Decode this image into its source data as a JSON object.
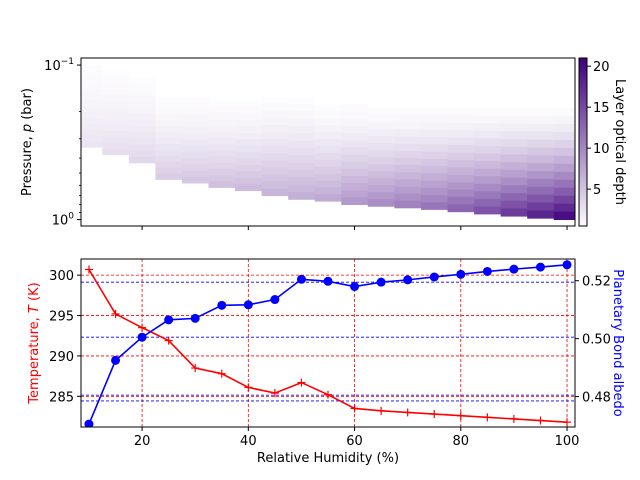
{
  "chart_data": [
    {
      "type": "heatmap",
      "title": "",
      "xlabel": "",
      "ylabel": "Pressure, p (bar)",
      "ylabel_main": "Pressure, ",
      "ylabel_var": "p",
      "ylabel_unit": " (bar)",
      "yscale": "log",
      "ylim": [
        1.1,
        0.09
      ],
      "yticks": [
        {
          "value": 0.1,
          "base": "10",
          "exp": "−1"
        },
        {
          "value": 1.0,
          "base": "10",
          "exp": "0"
        }
      ],
      "colorbar": {
        "label": "Layer optical depth",
        "range": [
          0.5,
          21
        ],
        "ticks": [
          5,
          10,
          15,
          20
        ],
        "colormap": "Purples",
        "color_low": "#fcfbfd",
        "color_high": "#3f007d"
      },
      "columns": [
        {
          "humidity": 10,
          "p_top": 0.1,
          "p_bottom": 0.34,
          "max_depth": 2.5
        },
        {
          "humidity": 15,
          "p_top": 0.11,
          "p_bottom": 0.38,
          "max_depth": 3.0
        },
        {
          "humidity": 20,
          "p_top": 0.12,
          "p_bottom": 0.43,
          "max_depth": 3.5
        },
        {
          "humidity": 25,
          "p_top": 0.16,
          "p_bottom": 0.55,
          "max_depth": 4.5
        },
        {
          "humidity": 30,
          "p_top": 0.16,
          "p_bottom": 0.58,
          "max_depth": 5.0
        },
        {
          "humidity": 35,
          "p_top": 0.17,
          "p_bottom": 0.62,
          "max_depth": 5.5
        },
        {
          "humidity": 40,
          "p_top": 0.17,
          "p_bottom": 0.65,
          "max_depth": 6.0
        },
        {
          "humidity": 45,
          "p_top": 0.16,
          "p_bottom": 0.7,
          "max_depth": 6.5
        },
        {
          "humidity": 50,
          "p_top": 0.16,
          "p_bottom": 0.74,
          "max_depth": 7.0
        },
        {
          "humidity": 55,
          "p_top": 0.18,
          "p_bottom": 0.76,
          "max_depth": 7.5
        },
        {
          "humidity": 60,
          "p_top": 0.18,
          "p_bottom": 0.8,
          "max_depth": 9.0
        },
        {
          "humidity": 65,
          "p_top": 0.19,
          "p_bottom": 0.82,
          "max_depth": 10.0
        },
        {
          "humidity": 70,
          "p_top": 0.19,
          "p_bottom": 0.84,
          "max_depth": 11.0
        },
        {
          "humidity": 75,
          "p_top": 0.19,
          "p_bottom": 0.86,
          "max_depth": 12.0
        },
        {
          "humidity": 80,
          "p_top": 0.19,
          "p_bottom": 0.89,
          "max_depth": 13.5
        },
        {
          "humidity": 85,
          "p_top": 0.19,
          "p_bottom": 0.92,
          "max_depth": 15.0
        },
        {
          "humidity": 90,
          "p_top": 0.19,
          "p_bottom": 0.95,
          "max_depth": 17.0
        },
        {
          "humidity": 95,
          "p_top": 0.19,
          "p_bottom": 0.98,
          "max_depth": 19.0
        },
        {
          "humidity": 100,
          "p_top": 0.19,
          "p_bottom": 1.0,
          "max_depth": 21.0
        }
      ]
    },
    {
      "type": "line",
      "title": "",
      "xlabel": "Relative Humidity (%)",
      "xlim": [
        8.5,
        101.5
      ],
      "xticks": [
        20,
        40,
        60,
        80,
        100
      ],
      "ylabel_left": "Temperature, T (K)",
      "ylabel_left_main": "Temperature, ",
      "ylabel_left_var": "T",
      "ylabel_left_unit": " (K)",
      "ylim_left": [
        281.2,
        302.0
      ],
      "yticks_left": [
        285,
        290,
        295,
        300
      ],
      "ylabel_right": "Planetary Bond albedo",
      "ylim_right": [
        0.4695,
        0.5275
      ],
      "yticks_right": [
        0.48,
        0.5,
        0.52
      ],
      "grid_left_y": [
        285.0,
        290.0,
        295.0,
        300.0
      ],
      "grid_right_y": [
        0.4785,
        0.4805,
        0.5005,
        0.5195
      ],
      "grid_x": [
        20,
        40,
        60,
        80,
        100
      ],
      "x": [
        10,
        15,
        20,
        25,
        30,
        35,
        40,
        45,
        50,
        55,
        60,
        65,
        70,
        75,
        80,
        85,
        90,
        95,
        100
      ],
      "series": [
        {
          "name": "Temperature",
          "axis": "left",
          "color": "#ff0000",
          "marker": "plus",
          "values": [
            300.7,
            295.2,
            293.5,
            291.9,
            288.5,
            287.8,
            286.1,
            285.4,
            286.7,
            285.2,
            283.5,
            283.2,
            283.0,
            282.8,
            282.6,
            282.4,
            282.2,
            282.0,
            281.8
          ]
        },
        {
          "name": "Planetary Bond albedo",
          "axis": "right",
          "color": "#0000ff",
          "marker": "circle",
          "values": [
            0.4705,
            0.4925,
            0.5005,
            0.5065,
            0.507,
            0.5115,
            0.5117,
            0.5135,
            0.5205,
            0.5198,
            0.518,
            0.5195,
            0.5203,
            0.5213,
            0.5222,
            0.5232,
            0.524,
            0.5247,
            0.5255
          ]
        }
      ]
    }
  ]
}
